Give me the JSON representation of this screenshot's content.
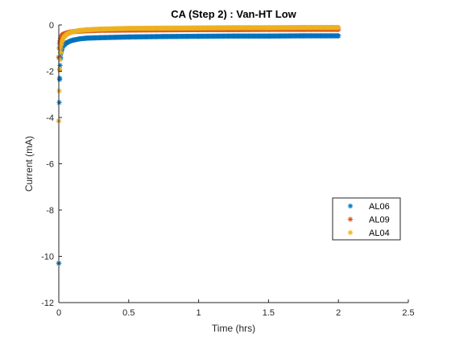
{
  "chart_data": {
    "type": "scatter",
    "title": "CA (Step 2) : Van-HT Low",
    "xlabel": "Time (hrs)",
    "ylabel": "Current (mA)",
    "xlim": [
      0,
      2.5
    ],
    "ylim": [
      -12,
      0
    ],
    "xticks": [
      0,
      0.5,
      1,
      1.5,
      2,
      2.5
    ],
    "xtick_labels": [
      "0",
      "0.5",
      "1",
      "1.5",
      "2",
      "2.5"
    ],
    "yticks": [
      -12,
      -10,
      -8,
      -6,
      -4,
      -2,
      0
    ],
    "ytick_labels": [
      "-12",
      "-10",
      "-8",
      "-6",
      "-4",
      "-2",
      "0"
    ],
    "grid": false,
    "marker": "asterisk",
    "legend_position": "right",
    "series": [
      {
        "name": "AL06",
        "color": "#0072BD",
        "x": [
          0,
          0.003,
          0.006,
          0.009,
          0.012,
          0.015,
          0.02,
          0.025,
          0.03,
          0.04,
          0.05,
          0.06,
          0.08,
          0.1,
          0.15,
          0.2,
          0.3,
          0.5,
          0.75,
          1.0,
          1.25,
          1.5,
          1.75,
          2.0
        ],
        "y": [
          -10.3,
          -3.35,
          -2.35,
          -1.75,
          -1.45,
          -1.25,
          -1.1,
          -1.0,
          -0.93,
          -0.85,
          -0.8,
          -0.76,
          -0.7,
          -0.66,
          -0.6,
          -0.57,
          -0.55,
          -0.52,
          -0.5,
          -0.49,
          -0.48,
          -0.48,
          -0.47,
          -0.47
        ]
      },
      {
        "name": "AL09",
        "color": "#D95319",
        "x": [
          0,
          0.003,
          0.006,
          0.009,
          0.012,
          0.015,
          0.02,
          0.025,
          0.03,
          0.04,
          0.05,
          0.06,
          0.08,
          0.1,
          0.15,
          0.2,
          0.3,
          0.5,
          0.75,
          1.0,
          1.25,
          1.5,
          1.75,
          2.0
        ],
        "y": [
          -1.4,
          -1.0,
          -0.8,
          -0.68,
          -0.6,
          -0.54,
          -0.48,
          -0.44,
          -0.41,
          -0.38,
          -0.36,
          -0.34,
          -0.31,
          -0.29,
          -0.27,
          -0.25,
          -0.23,
          -0.22,
          -0.21,
          -0.2,
          -0.2,
          -0.19,
          -0.19,
          -0.19
        ]
      },
      {
        "name": "AL04",
        "color": "#EDB120",
        "x": [
          0,
          0.003,
          0.006,
          0.009,
          0.012,
          0.015,
          0.02,
          0.025,
          0.03,
          0.04,
          0.05,
          0.06,
          0.08,
          0.1,
          0.15,
          0.2,
          0.3,
          0.5,
          0.75,
          1.0,
          1.25,
          1.5,
          1.75,
          2.0
        ],
        "y": [
          -4.15,
          -2.85,
          -1.95,
          -1.5,
          -1.2,
          -1.0,
          -0.8,
          -0.68,
          -0.6,
          -0.5,
          -0.44,
          -0.39,
          -0.33,
          -0.29,
          -0.24,
          -0.21,
          -0.18,
          -0.15,
          -0.14,
          -0.13,
          -0.12,
          -0.12,
          -0.11,
          -0.11
        ]
      }
    ]
  }
}
